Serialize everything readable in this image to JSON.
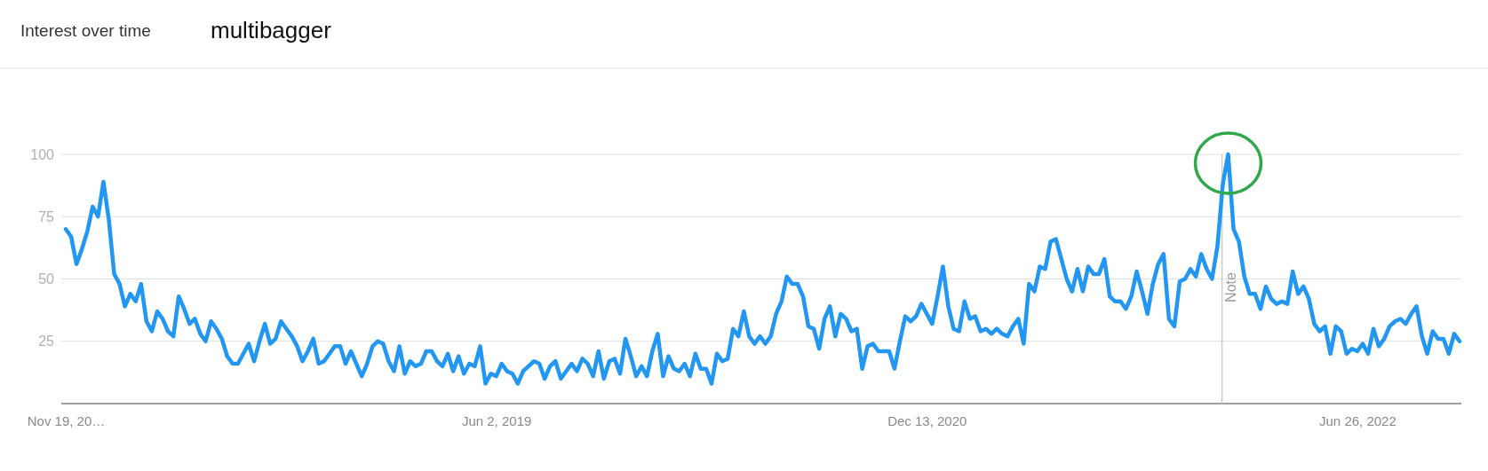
{
  "chart_data": {
    "type": "line",
    "title": "Interest over time",
    "subtitle": "multibagger",
    "xlim": [
      "2017-11-19",
      "2022-11-06"
    ],
    "ylim": [
      0,
      100
    ],
    "xticks": [
      {
        "value": "2017-11-19",
        "label": "Nov 19, 20…"
      },
      {
        "value": "2019-06-02",
        "label": "Jun 2, 2019"
      },
      {
        "value": "2020-12-13",
        "label": "Dec 13, 2020"
      },
      {
        "value": "2022-06-26",
        "label": "Jun 26, 2022"
      }
    ],
    "yticks": [
      25,
      50,
      75,
      100
    ],
    "grid": "y",
    "ref_lines": [
      {
        "axis": "x",
        "value": "2022-01-01",
        "label": "Note",
        "color": "#cccccc"
      }
    ],
    "series": [
      {
        "color": "#2196f3",
        "x": [
          "2017-11-19",
          "2017-11-26",
          "2017-12-03",
          "2017-12-10",
          "2017-12-17",
          "2017-12-24",
          "2017-12-31",
          "2018-01-07",
          "2018-01-14",
          "2018-01-21",
          "2018-01-28",
          "2018-02-04",
          "2018-02-11",
          "2018-02-18",
          "2018-02-25",
          "2018-03-04",
          "2018-03-11",
          "2018-03-18",
          "2018-03-25",
          "2018-04-01",
          "2018-04-08",
          "2018-04-15",
          "2018-04-22",
          "2018-04-29",
          "2018-05-06",
          "2018-05-13",
          "2018-05-20",
          "2018-05-27",
          "2018-06-03",
          "2018-06-10",
          "2018-06-17",
          "2018-06-24",
          "2018-07-01",
          "2018-07-08",
          "2018-07-15",
          "2018-07-22",
          "2018-07-29",
          "2018-08-05",
          "2018-08-12",
          "2018-08-19",
          "2018-08-26",
          "2018-09-02",
          "2018-09-09",
          "2018-09-16",
          "2018-09-23",
          "2018-09-30",
          "2018-10-07",
          "2018-10-14",
          "2018-10-21",
          "2018-10-28",
          "2018-11-04",
          "2018-11-11",
          "2018-11-18",
          "2018-11-25",
          "2018-12-02",
          "2018-12-09",
          "2018-12-16",
          "2018-12-23",
          "2018-12-30",
          "2019-01-06",
          "2019-01-13",
          "2019-01-20",
          "2019-01-27",
          "2019-02-03",
          "2019-02-10",
          "2019-02-17",
          "2019-02-24",
          "2019-03-03",
          "2019-03-10",
          "2019-03-17",
          "2019-03-24",
          "2019-03-31",
          "2019-04-07",
          "2019-04-14",
          "2019-04-21",
          "2019-04-28",
          "2019-05-05",
          "2019-05-12",
          "2019-05-19",
          "2019-05-26",
          "2019-06-02",
          "2019-06-09",
          "2019-06-16",
          "2019-06-23",
          "2019-06-30",
          "2019-07-07",
          "2019-07-14",
          "2019-07-21",
          "2019-07-28",
          "2019-08-04",
          "2019-08-11",
          "2019-08-18",
          "2019-08-25",
          "2019-09-01",
          "2019-09-08",
          "2019-09-15",
          "2019-09-22",
          "2019-09-29",
          "2019-10-06",
          "2019-10-13",
          "2019-10-20",
          "2019-10-27",
          "2019-11-03",
          "2019-11-10",
          "2019-11-17",
          "2019-11-24",
          "2019-12-01",
          "2019-12-08",
          "2019-12-15",
          "2019-12-22",
          "2019-12-29",
          "2020-01-05",
          "2020-01-12",
          "2020-01-19",
          "2020-01-26",
          "2020-02-02",
          "2020-02-09",
          "2020-02-16",
          "2020-02-23",
          "2020-03-01",
          "2020-03-08",
          "2020-03-15",
          "2020-03-22",
          "2020-03-29",
          "2020-04-05",
          "2020-04-12",
          "2020-04-19",
          "2020-04-26",
          "2020-05-03",
          "2020-05-10",
          "2020-05-17",
          "2020-05-24",
          "2020-05-31",
          "2020-06-07",
          "2020-06-14",
          "2020-06-21",
          "2020-06-28",
          "2020-07-05",
          "2020-07-12",
          "2020-07-19",
          "2020-07-26",
          "2020-08-02",
          "2020-08-09",
          "2020-08-16",
          "2020-08-23",
          "2020-08-30",
          "2020-09-06",
          "2020-09-13",
          "2020-09-20",
          "2020-09-27",
          "2020-10-04",
          "2020-10-11",
          "2020-10-18",
          "2020-10-25",
          "2020-11-01",
          "2020-11-08",
          "2020-11-15",
          "2020-11-22",
          "2020-11-29",
          "2020-12-06",
          "2020-12-13",
          "2020-12-20",
          "2020-12-27",
          "2021-01-03",
          "2021-01-10",
          "2021-01-17",
          "2021-01-24",
          "2021-01-31",
          "2021-02-07",
          "2021-02-14",
          "2021-02-21",
          "2021-02-28",
          "2021-03-07",
          "2021-03-14",
          "2021-03-21",
          "2021-03-28",
          "2021-04-04",
          "2021-04-11",
          "2021-04-18",
          "2021-04-25",
          "2021-05-02",
          "2021-05-09",
          "2021-05-16",
          "2021-05-23",
          "2021-05-30",
          "2021-06-06",
          "2021-06-13",
          "2021-06-20",
          "2021-06-27",
          "2021-07-04",
          "2021-07-11",
          "2021-07-18",
          "2021-07-25",
          "2021-08-01",
          "2021-08-08",
          "2021-08-15",
          "2021-08-22",
          "2021-08-29",
          "2021-09-05",
          "2021-09-12",
          "2021-09-19",
          "2021-09-26",
          "2021-10-03",
          "2021-10-10",
          "2021-10-17",
          "2021-10-24",
          "2021-10-31",
          "2021-11-07",
          "2021-11-14",
          "2021-11-21",
          "2021-11-28",
          "2021-12-05",
          "2021-12-12",
          "2021-12-19",
          "2021-12-26",
          "2022-01-02",
          "2022-01-09",
          "2022-01-16",
          "2022-01-23",
          "2022-01-30",
          "2022-02-06",
          "2022-02-13",
          "2022-02-20",
          "2022-02-27",
          "2022-03-06",
          "2022-03-13",
          "2022-03-20",
          "2022-03-27",
          "2022-04-03",
          "2022-04-10",
          "2022-04-17",
          "2022-04-24",
          "2022-05-01",
          "2022-05-08",
          "2022-05-15",
          "2022-05-22",
          "2022-05-29",
          "2022-06-05",
          "2022-06-12",
          "2022-06-19",
          "2022-06-26",
          "2022-07-03",
          "2022-07-10",
          "2022-07-17",
          "2022-07-24",
          "2022-07-31",
          "2022-08-07",
          "2022-08-14",
          "2022-08-21",
          "2022-08-28",
          "2022-09-04",
          "2022-09-11",
          "2022-09-18",
          "2022-09-25",
          "2022-10-02",
          "2022-10-09",
          "2022-10-16",
          "2022-10-23",
          "2022-10-30",
          "2022-11-06"
        ],
        "values": [
          70,
          67,
          56,
          62,
          69,
          79,
          75,
          89,
          74,
          52,
          48,
          39,
          44,
          41,
          48,
          33,
          29,
          37,
          34,
          29,
          27,
          43,
          38,
          32,
          34,
          28,
          25,
          33,
          30,
          26,
          19,
          16,
          16,
          20,
          24,
          17,
          25,
          32,
          24,
          26,
          33,
          30,
          27,
          23,
          17,
          21,
          26,
          16,
          17,
          20,
          23,
          23,
          16,
          21,
          16,
          11,
          16,
          23,
          25,
          24,
          17,
          13,
          23,
          12,
          17,
          15,
          16,
          21,
          21,
          17,
          15,
          20,
          13,
          19,
          12,
          16,
          15,
          23,
          8,
          12,
          11,
          16,
          13,
          12,
          8,
          13,
          15,
          17,
          16,
          10,
          15,
          17,
          10,
          13,
          16,
          13,
          18,
          16,
          11,
          21,
          10,
          17,
          18,
          12,
          26,
          19,
          11,
          15,
          11,
          21,
          28,
          11,
          19,
          14,
          13,
          16,
          11,
          20,
          14,
          14,
          8,
          20,
          17,
          18,
          30,
          27,
          37,
          27,
          24,
          27,
          24,
          27,
          36,
          41,
          51,
          48,
          48,
          43,
          31,
          30,
          22,
          34,
          39,
          27,
          36,
          34,
          29,
          30,
          14,
          23,
          24,
          21,
          21,
          21,
          14,
          25,
          35,
          33,
          35,
          40,
          36,
          32,
          43,
          55,
          39,
          30,
          29,
          41,
          34,
          35,
          29,
          30,
          28,
          30,
          28,
          27,
          31,
          34,
          24,
          48,
          45,
          55,
          54,
          65,
          66,
          58,
          50,
          45,
          54,
          45,
          55,
          52,
          52,
          58,
          43,
          41,
          41,
          38,
          43,
          53,
          45,
          36,
          48,
          56,
          60,
          34,
          31,
          49,
          50,
          54,
          51,
          60,
          54,
          50,
          63,
          88,
          100,
          70,
          65,
          51,
          44,
          44,
          38,
          47,
          42,
          40,
          41,
          40,
          53,
          44,
          47,
          42,
          32,
          29,
          31,
          20,
          31,
          29,
          20,
          22,
          21,
          24,
          20,
          30,
          23,
          26,
          31,
          33,
          34,
          32,
          36,
          39,
          27,
          20,
          29,
          26,
          26,
          20,
          28,
          25
        ]
      }
    ]
  }
}
